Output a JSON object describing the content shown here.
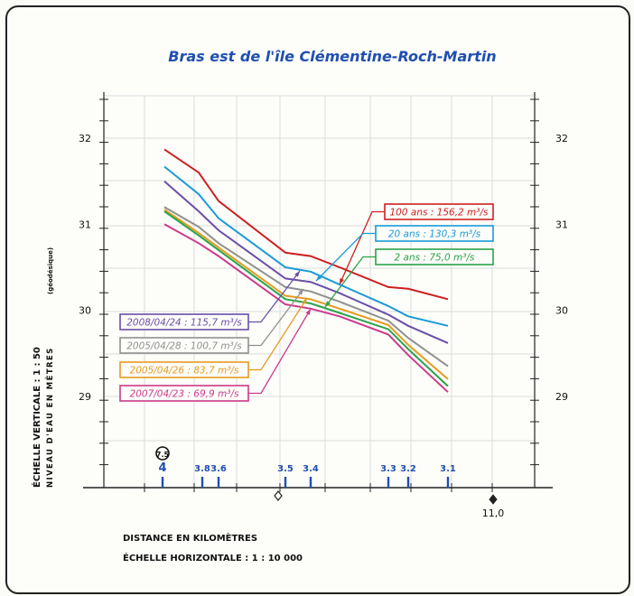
{
  "chart_data": {
    "type": "line",
    "title": "Bras est de l'île Clémentine-Roch-Martin",
    "ylabel_lines": [
      "ÉCHELLE VERTICALE : 1 : 50",
      "NIVEAU D'EAU EN MÈTRES",
      "(géodésique)"
    ],
    "xlabel_lines": [
      "DISTANCE EN KILOMÈTRES",
      "ÉCHELLE HORIZONTALE : 1 : 10 000"
    ],
    "ylim": [
      28,
      32.5
    ],
    "y_ticks": [
      29,
      30,
      31,
      32
    ],
    "x_axis_label": "11,0",
    "x": [
      4.0,
      3.8,
      3.6,
      3.5,
      3.45,
      3.4,
      3.3,
      3.2,
      3.1
    ],
    "series": [
      {
        "name": "100 ans : 156,2 m³/s",
        "color": "#cc2020",
        "values": [
          31.87,
          31.6,
          31.27,
          30.67,
          30.63,
          30.5,
          30.27,
          30.25,
          30.13
        ]
      },
      {
        "name": "20 ans : 130,3 m³/s",
        "color": "#1a9ad8",
        "values": [
          31.67,
          31.35,
          31.07,
          30.5,
          30.45,
          30.3,
          30.05,
          29.93,
          29.82
        ]
      },
      {
        "name": "2008/04/24 : 115,7 m³/s",
        "color": "#6a4fa8",
        "values": [
          31.5,
          31.15,
          30.93,
          30.37,
          30.33,
          30.2,
          29.95,
          29.82,
          29.62
        ]
      },
      {
        "name": "2005/04/28 : 100,7 m³/s",
        "color": "#909090",
        "values": [
          31.2,
          30.97,
          30.78,
          30.27,
          30.22,
          30.1,
          29.88,
          29.68,
          29.35
        ]
      },
      {
        "name": "2005/04/26 : 83,7 m³/s",
        "color": "#e89a20",
        "values": [
          31.17,
          30.9,
          30.73,
          30.17,
          30.13,
          30.02,
          29.83,
          29.6,
          29.2
        ]
      },
      {
        "name": "2 ans : 75,0 m³/s",
        "color": "#2aa34a",
        "values": [
          31.15,
          30.87,
          30.7,
          30.13,
          30.08,
          29.97,
          29.78,
          29.55,
          29.12
        ]
      },
      {
        "name": "2007/04/23 : 69,9 m³/s",
        "color": "#cc3a8a",
        "values": [
          31.0,
          30.78,
          30.63,
          30.07,
          30.02,
          29.93,
          29.72,
          29.48,
          29.05
        ]
      }
    ],
    "station_labels": [
      "4",
      "3.8",
      "3.6",
      "3.5",
      "3.4",
      "3.3",
      "3.2",
      "3.1"
    ],
    "circled_marker": "7.5",
    "grid": true
  }
}
